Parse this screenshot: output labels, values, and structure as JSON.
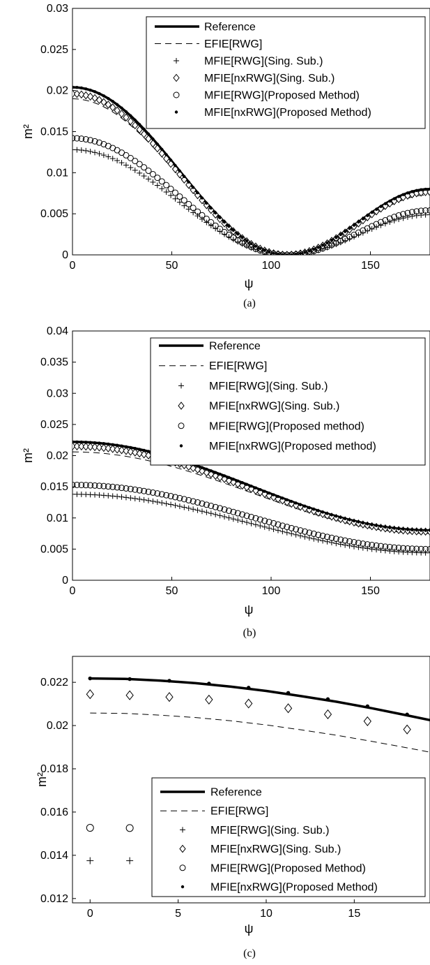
{
  "chart_data": [
    {
      "type": "scatter",
      "caption": "(a)",
      "xlabel": "ψ",
      "ylabel": "m²",
      "xlim": [
        0,
        180
      ],
      "ylim": [
        0,
        0.03
      ],
      "xticks": [
        0,
        50,
        100,
        150
      ],
      "yticks": [
        "0",
        "0.005",
        "0.01",
        "0.015",
        "0.02",
        "0.025",
        "0.03"
      ],
      "yticks_num": [
        0,
        0.005,
        0.01,
        0.015,
        0.02,
        0.025,
        0.03
      ],
      "legend": [
        "Reference",
        "EFIE[RWG]",
        "MFIE[RWG](Sing. Sub.)",
        "MFIE[nxRWG](Sing. Sub.)",
        "MFIE[RWG](Proposed Method)",
        "MFIE[nxRWG](Proposed Method)"
      ],
      "legend_position": "top-right",
      "x_step": 2.25,
      "series": [
        {
          "name": "Reference",
          "marker": "line-thick",
          "profile": "cos",
          "params": {
            "a": 0.0102,
            "b": 0.01213,
            "xmin": 108
          }
        },
        {
          "name": "EFIE[RWG]",
          "marker": "line-dash",
          "profile": "cos",
          "params": {
            "a": 0.0095,
            "b": 0.0111,
            "xmin": 108
          }
        },
        {
          "name": "MFIE[RWG](Sing. Sub.)",
          "marker": "plus",
          "profile": "cos",
          "params": {
            "a": 0.0064,
            "b": 0.0074,
            "xmin": 108
          }
        },
        {
          "name": "MFIE[nxRWG](Sing. Sub.)",
          "marker": "diamond",
          "profile": "cos",
          "params": {
            "a": 0.0098,
            "b": 0.0116,
            "xmin": 108
          }
        },
        {
          "name": "MFIE[RWG](Proposed Method)",
          "marker": "circle",
          "profile": "cos",
          "params": {
            "a": 0.0071,
            "b": 0.0082,
            "xmin": 108
          }
        },
        {
          "name": "MFIE[nxRWG](Proposed Method)",
          "marker": "dot",
          "profile": "cos",
          "params": {
            "a": 0.0102,
            "b": 0.01213,
            "xmin": 108
          }
        }
      ]
    },
    {
      "type": "scatter",
      "caption": "(b)",
      "xlabel": "ψ",
      "ylabel": "m²",
      "xlim": [
        0,
        180
      ],
      "ylim": [
        0,
        0.04
      ],
      "xticks": [
        0,
        50,
        100,
        150
      ],
      "yticks": [
        "0",
        "0.005",
        "0.01",
        "0.015",
        "0.02",
        "0.025",
        "0.03",
        "0.035",
        "0.04"
      ],
      "yticks_num": [
        0,
        0.005,
        0.01,
        0.015,
        0.02,
        0.025,
        0.03,
        0.035,
        0.04
      ],
      "legend": [
        "Reference",
        "EFIE[RWG]",
        "MFIE[RWG](Sing. Sub.)",
        "MFIE[nxRWG](Sing. Sub.)",
        "MFIE[RWG](Proposed method)",
        "MFIE[nxRWG](Proposed method)"
      ],
      "legend_position": "top-right",
      "x_step": 2.25,
      "series": [
        {
          "name": "Reference",
          "marker": "line-thick",
          "profile": "smooth",
          "params": {
            "y0": 0.0222,
            "y1": 0.008
          }
        },
        {
          "name": "EFIE[RWG]",
          "marker": "line-dash",
          "profile": "smooth",
          "params": {
            "y0": 0.0206,
            "y1": 0.0075
          }
        },
        {
          "name": "MFIE[RWG](Sing. Sub.)",
          "marker": "plus",
          "profile": "smooth",
          "params": {
            "y0": 0.0138,
            "y1": 0.0044
          }
        },
        {
          "name": "MFIE[nxRWG](Sing. Sub.)",
          "marker": "diamond",
          "profile": "smooth",
          "params": {
            "y0": 0.0215,
            "y1": 0.0078
          }
        },
        {
          "name": "MFIE[RWG](Proposed method)",
          "marker": "circle",
          "profile": "smooth",
          "params": {
            "y0": 0.0153,
            "y1": 0.005
          }
        },
        {
          "name": "MFIE[nxRWG](Proposed method)",
          "marker": "dot",
          "profile": "smooth",
          "params": {
            "y0": 0.0222,
            "y1": 0.008
          }
        }
      ]
    },
    {
      "type": "scatter",
      "caption": "(c)",
      "xlabel": "ψ",
      "ylabel": "m²",
      "xlim": [
        -1,
        19.3
      ],
      "ylim": [
        0.0118,
        0.0232
      ],
      "xticks": [
        0,
        5,
        10,
        15
      ],
      "yticks": [
        "0.012",
        "0.014",
        "0.016",
        "0.018",
        "0.02",
        "0.022"
      ],
      "yticks_num": [
        0.012,
        0.014,
        0.016,
        0.018,
        0.02,
        0.022
      ],
      "legend": [
        "Reference",
        "EFIE[RWG]",
        "MFIE[RWG](Sing. Sub.)",
        "MFIE[nxRWG](Sing. Sub.)",
        "MFIE[RWG](Proposed Method)",
        "MFIE[nxRWG](Proposed Method)"
      ],
      "legend_position": "bottom-right",
      "series": [
        {
          "name": "Reference",
          "marker": "line-thick",
          "x": [
            0,
            2,
            4,
            6,
            8,
            10,
            12,
            14,
            16,
            18,
            19.3
          ],
          "y": [
            0.02218,
            0.02216,
            0.02208,
            0.02196,
            0.0218,
            0.0216,
            0.02136,
            0.0211,
            0.0208,
            0.02047,
            0.02025
          ]
        },
        {
          "name": "EFIE[RWG]",
          "marker": "line-dash",
          "x": [
            0,
            2,
            4,
            6,
            8,
            10,
            12,
            14,
            16,
            18,
            19.3
          ],
          "y": [
            0.02058,
            0.02056,
            0.02048,
            0.02037,
            0.02022,
            0.02003,
            0.0198,
            0.01955,
            0.01927,
            0.01897,
            0.01877
          ]
        },
        {
          "name": "MFIE[RWG](Sing. Sub.)",
          "marker": "plus",
          "x": [
            0,
            2.25
          ],
          "y": [
            0.01375,
            0.01375
          ]
        },
        {
          "name": "MFIE[nxRWG](Sing. Sub.)",
          "marker": "diamond",
          "x": [
            0,
            2.25,
            4.5,
            6.75,
            9,
            11.25,
            13.5,
            15.75,
            18
          ],
          "y": [
            0.02145,
            0.0214,
            0.02132,
            0.0212,
            0.02102,
            0.0208,
            0.02052,
            0.0202,
            0.01982
          ]
        },
        {
          "name": "MFIE[RWG](Proposed Method)",
          "marker": "circle",
          "x": [
            0,
            2.25
          ],
          "y": [
            0.01527,
            0.01526
          ]
        },
        {
          "name": "MFIE[nxRWG](Proposed Method)",
          "marker": "dot",
          "x": [
            0,
            2.25,
            4.5,
            6.75,
            9,
            11.25,
            13.5,
            15.75,
            18
          ],
          "y": [
            0.02218,
            0.02215,
            0.02207,
            0.02194,
            0.02175,
            0.02151,
            0.02122,
            0.02089,
            0.02051
          ]
        }
      ]
    }
  ]
}
